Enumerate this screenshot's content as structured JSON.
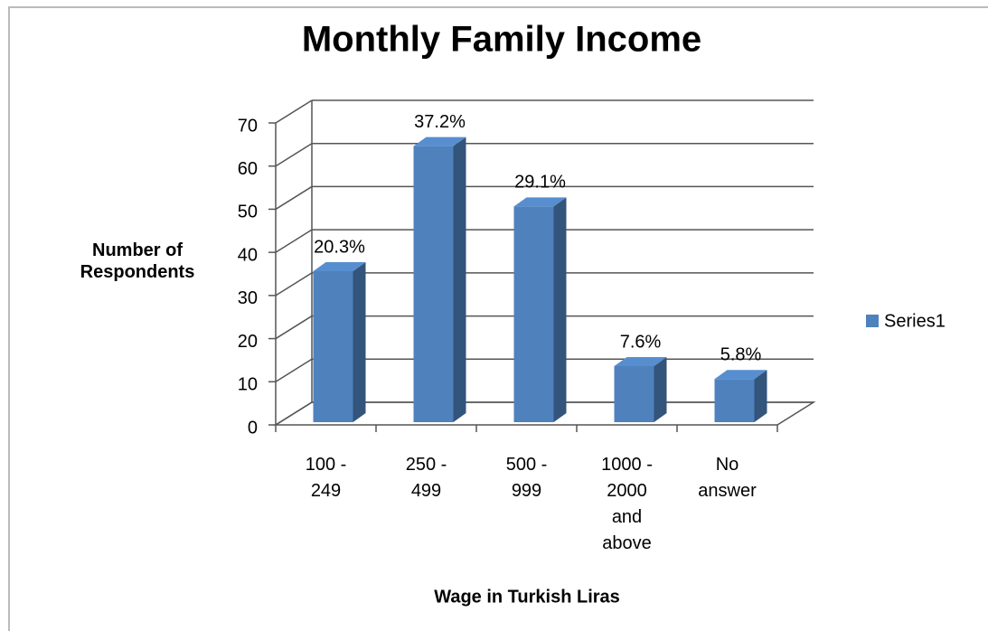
{
  "chart_data": {
    "type": "bar3d",
    "title": "Monthly Family Income",
    "x_label": "Wage in Turkish Liras",
    "y_label": "Number of\nRespondents",
    "categories": [
      "100 -\n249",
      "250 -\n499",
      "500 -\n999",
      "1000 -\n2000\nand\nabove",
      "No\nanswer"
    ],
    "series": [
      {
        "name": "Series1",
        "color": "#4f81bd",
        "values": [
          35,
          64,
          50,
          13,
          10
        ],
        "value_labels": [
          "20.3%",
          "37.2%",
          "29.1%",
          "7.6%",
          "5.8%"
        ]
      }
    ],
    "ylim": [
      0,
      70
    ],
    "yticks": [
      0,
      10,
      20,
      30,
      40,
      50,
      60,
      70
    ],
    "grid": true,
    "legend": "right"
  }
}
